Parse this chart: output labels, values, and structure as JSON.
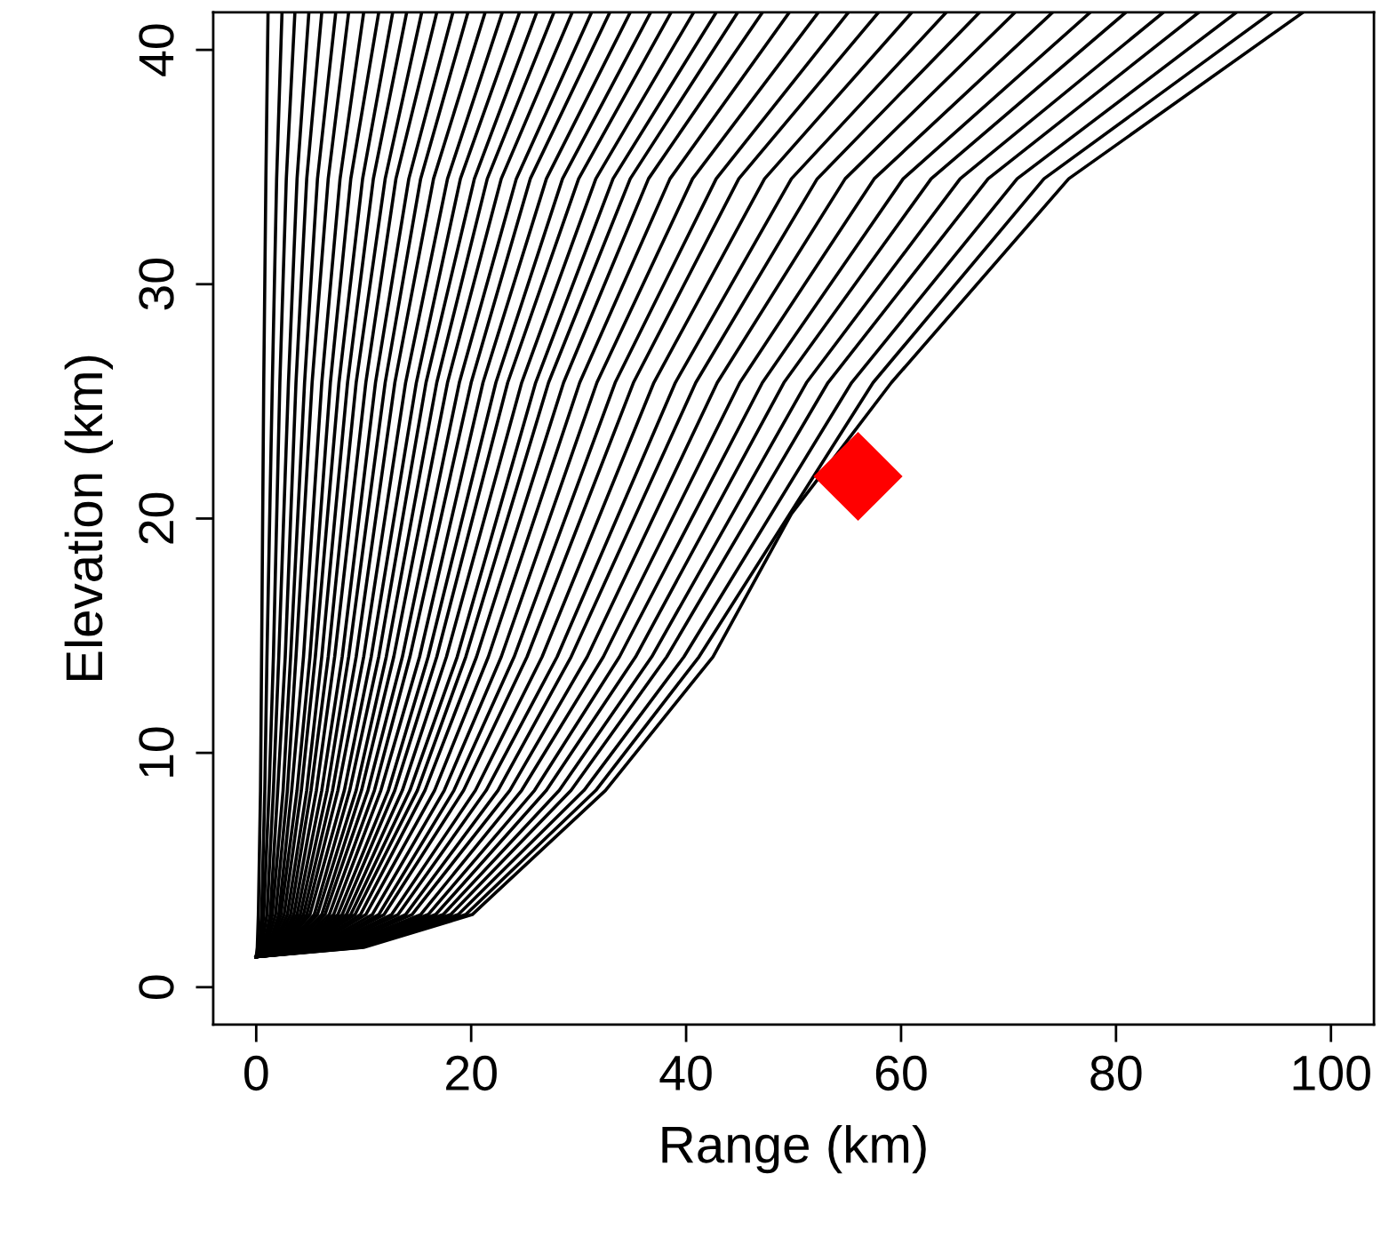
{
  "chart_data": {
    "type": "line",
    "xlabel": "Range (km)",
    "ylabel": "Elevation (km)",
    "xlim": [
      -4,
      104
    ],
    "ylim": [
      -1.6,
      41.6
    ],
    "xticks": [
      0,
      20,
      40,
      60,
      80,
      100
    ],
    "yticks": [
      0,
      10,
      20,
      30,
      40
    ],
    "grid": false,
    "legend": false,
    "line_style": "solid",
    "series": [
      {
        "color": "#000000",
        "x": [
          0,
          0.1,
          0.2,
          0.4,
          0.5,
          0.7,
          0.9,
          1.1
        ],
        "values": [
          1.3,
          1.7,
          3.1,
          8.4,
          14.1,
          25.8,
          34.5,
          41.6
        ]
      },
      {
        "color": "#000000",
        "x": [
          0,
          0.3,
          0.5,
          0.8,
          1.0,
          1.5,
          1.9,
          2.4
        ],
        "values": [
          1.3,
          1.7,
          3.1,
          8.4,
          14.1,
          25.8,
          34.5,
          41.6
        ]
      },
      {
        "color": "#000000",
        "x": [
          0,
          0.4,
          0.7,
          1.2,
          1.6,
          2.2,
          2.8,
          3.6
        ],
        "values": [
          1.3,
          1.7,
          3.1,
          8.4,
          14.1,
          25.8,
          34.5,
          41.6
        ]
      },
      {
        "color": "#000000",
        "x": [
          0,
          0.5,
          1.0,
          1.6,
          2.1,
          3.0,
          3.8,
          4.9
        ],
        "values": [
          1.3,
          1.7,
          3.1,
          8.4,
          14.1,
          25.8,
          34.5,
          41.6
        ]
      },
      {
        "color": "#000000",
        "x": [
          0,
          0.7,
          1.3,
          2.0,
          2.7,
          3.7,
          4.7,
          6.1
        ],
        "values": [
          1.3,
          1.7,
          3.1,
          8.4,
          14.1,
          25.8,
          34.5,
          41.6
        ]
      },
      {
        "color": "#000000",
        "x": [
          0,
          0.8,
          1.5,
          2.5,
          3.2,
          4.5,
          5.7,
          7.4
        ],
        "values": [
          1.3,
          1.7,
          3.1,
          8.4,
          14.1,
          25.8,
          34.5,
          41.6
        ]
      },
      {
        "color": "#000000",
        "x": [
          0,
          0.9,
          1.8,
          2.9,
          3.7,
          5.2,
          6.7,
          8.6
        ],
        "values": [
          1.3,
          1.7,
          3.1,
          8.4,
          14.1,
          25.8,
          34.5,
          41.6
        ]
      },
      {
        "color": "#000000",
        "x": [
          0,
          1.1,
          2.1,
          3.3,
          4.4,
          6.1,
          7.8,
          10.0
        ],
        "values": [
          1.3,
          1.7,
          3.1,
          8.4,
          14.1,
          25.8,
          34.5,
          41.6
        ]
      },
      {
        "color": "#000000",
        "x": [
          0,
          1.2,
          2.3,
          3.8,
          5.0,
          6.9,
          8.8,
          11.4
        ],
        "values": [
          1.3,
          1.7,
          3.1,
          8.4,
          14.1,
          25.8,
          34.5,
          41.6
        ]
      },
      {
        "color": "#000000",
        "x": [
          0,
          1.3,
          2.6,
          4.2,
          5.5,
          7.7,
          9.9,
          12.7
        ],
        "values": [
          1.3,
          1.7,
          3.1,
          8.4,
          14.1,
          25.8,
          34.5,
          41.6
        ]
      },
      {
        "color": "#000000",
        "x": [
          0,
          1.5,
          2.9,
          4.7,
          6.1,
          8.5,
          10.9,
          14.0
        ],
        "values": [
          1.3,
          1.7,
          3.1,
          8.4,
          14.1,
          25.8,
          34.5,
          41.6
        ]
      },
      {
        "color": "#000000",
        "x": [
          0,
          1.6,
          3.2,
          5.1,
          6.7,
          9.3,
          12.0,
          15.4
        ],
        "values": [
          1.3,
          1.7,
          3.1,
          8.4,
          14.1,
          25.8,
          34.5,
          41.6
        ]
      },
      {
        "color": "#000000",
        "x": [
          0,
          1.8,
          3.5,
          5.6,
          7.3,
          10.2,
          13.0,
          16.8
        ],
        "values": [
          1.3,
          1.7,
          3.1,
          8.4,
          14.1,
          25.8,
          34.5,
          41.6
        ]
      },
      {
        "color": "#000000",
        "x": [
          0,
          1.9,
          3.8,
          6.1,
          8.0,
          11.1,
          14.2,
          18.3
        ],
        "values": [
          1.3,
          1.7,
          3.1,
          8.4,
          14.1,
          25.8,
          34.5,
          41.6
        ]
      },
      {
        "color": "#000000",
        "x": [
          0,
          2.1,
          4.1,
          6.6,
          8.6,
          12.0,
          15.3,
          19.7
        ],
        "values": [
          1.3,
          1.7,
          3.1,
          8.4,
          14.1,
          25.8,
          34.5,
          41.6
        ]
      },
      {
        "color": "#000000",
        "x": [
          0,
          2.2,
          4.4,
          7.1,
          9.3,
          12.9,
          16.5,
          21.3
        ],
        "values": [
          1.3,
          1.7,
          3.1,
          8.4,
          14.1,
          25.8,
          34.5,
          41.6
        ]
      },
      {
        "color": "#000000",
        "x": [
          0,
          2.4,
          4.7,
          7.6,
          10.0,
          13.9,
          17.8,
          22.9
        ],
        "values": [
          1.3,
          1.7,
          3.1,
          8.4,
          14.1,
          25.8,
          34.5,
          41.6
        ]
      },
      {
        "color": "#000000",
        "x": [
          0,
          2.5,
          5.0,
          8.2,
          10.7,
          14.9,
          19.0,
          24.5
        ],
        "values": [
          1.3,
          1.7,
          3.1,
          8.4,
          14.1,
          25.8,
          34.5,
          41.6
        ]
      },
      {
        "color": "#000000",
        "x": [
          0,
          2.7,
          5.4,
          8.7,
          11.4,
          15.8,
          20.3,
          26.1
        ],
        "values": [
          1.3,
          1.7,
          3.1,
          8.4,
          14.1,
          25.8,
          34.5,
          41.6
        ]
      },
      {
        "color": "#000000",
        "x": [
          0,
          2.9,
          5.7,
          9.3,
          12.1,
          16.8,
          21.5,
          27.7
        ],
        "values": [
          1.3,
          1.7,
          3.1,
          8.4,
          14.1,
          25.8,
          34.5,
          41.6
        ]
      },
      {
        "color": "#000000",
        "x": [
          0,
          3.1,
          6.1,
          9.8,
          12.8,
          17.8,
          22.8,
          29.4
        ],
        "values": [
          1.3,
          1.7,
          3.1,
          8.4,
          14.1,
          25.8,
          34.5,
          41.6
        ]
      },
      {
        "color": "#000000",
        "x": [
          0,
          3.2,
          6.4,
          10.4,
          13.6,
          18.9,
          24.2,
          31.2
        ],
        "values": [
          1.3,
          1.7,
          3.1,
          8.4,
          14.1,
          25.8,
          34.5,
          41.6
        ]
      },
      {
        "color": "#000000",
        "x": [
          0,
          3.4,
          6.8,
          11.0,
          14.3,
          20.0,
          25.5,
          32.9
        ],
        "values": [
          1.3,
          1.7,
          3.1,
          8.4,
          14.1,
          25.8,
          34.5,
          41.6
        ]
      },
      {
        "color": "#000000",
        "x": [
          0,
          3.6,
          7.2,
          11.6,
          15.2,
          21.1,
          27.0,
          34.8
        ],
        "values": [
          1.3,
          1.7,
          3.1,
          8.4,
          14.1,
          25.8,
          34.5,
          41.6
        ]
      },
      {
        "color": "#000000",
        "x": [
          0,
          3.8,
          7.6,
          12.3,
          16.0,
          22.3,
          28.5,
          36.7
        ],
        "values": [
          1.3,
          1.7,
          3.1,
          8.4,
          14.1,
          25.8,
          34.5,
          41.6
        ]
      },
      {
        "color": "#000000",
        "x": [
          0,
          4.0,
          8.0,
          12.9,
          16.8,
          23.4,
          30.0,
          38.6
        ],
        "values": [
          1.3,
          1.7,
          3.1,
          8.4,
          14.1,
          25.8,
          34.5,
          41.6
        ]
      },
      {
        "color": "#000000",
        "x": [
          0,
          4.2,
          8.4,
          13.6,
          17.7,
          24.7,
          31.6,
          40.7
        ],
        "values": [
          1.3,
          1.7,
          3.1,
          8.4,
          14.1,
          25.8,
          34.5,
          41.6
        ]
      },
      {
        "color": "#000000",
        "x": [
          0,
          4.4,
          8.8,
          14.3,
          18.7,
          26.0,
          33.2,
          42.8
        ],
        "values": [
          1.3,
          1.7,
          3.1,
          8.4,
          14.1,
          25.8,
          34.5,
          41.6
        ]
      },
      {
        "color": "#000000",
        "x": [
          0,
          4.6,
          9.2,
          15.0,
          19.5,
          27.2,
          34.8,
          44.8
        ],
        "values": [
          1.3,
          1.7,
          3.1,
          8.4,
          14.1,
          25.8,
          34.5,
          41.6
        ]
      },
      {
        "color": "#000000",
        "x": [
          0,
          4.9,
          9.7,
          15.7,
          20.5,
          28.6,
          36.5,
          47.1
        ],
        "values": [
          1.3,
          1.7,
          3.1,
          8.4,
          14.1,
          25.8,
          34.5,
          41.6
        ]
      },
      {
        "color": "#000000",
        "x": [
          0,
          5.1,
          10.2,
          16.6,
          21.6,
          30.1,
          38.5,
          49.6
        ],
        "values": [
          1.3,
          1.7,
          3.1,
          8.4,
          14.1,
          25.8,
          34.5,
          41.6
        ]
      },
      {
        "color": "#000000",
        "x": [
          0,
          5.4,
          10.8,
          17.5,
          22.8,
          31.7,
          40.6,
          52.3
        ],
        "values": [
          1.3,
          1.7,
          3.1,
          8.4,
          14.1,
          25.8,
          34.5,
          41.6
        ]
      },
      {
        "color": "#000000",
        "x": [
          0,
          5.7,
          11.4,
          18.4,
          24.0,
          33.4,
          42.8,
          55.1
        ],
        "values": [
          1.3,
          1.7,
          3.1,
          8.4,
          14.1,
          25.8,
          34.5,
          41.6
        ]
      },
      {
        "color": "#000000",
        "x": [
          0,
          6.0,
          11.9,
          19.3,
          25.2,
          35.1,
          44.9,
          57.9
        ],
        "values": [
          1.3,
          1.7,
          3.1,
          8.4,
          14.1,
          25.8,
          34.5,
          41.6
        ]
      },
      {
        "color": "#000000",
        "x": [
          0,
          6.3,
          12.6,
          20.4,
          26.6,
          37.0,
          47.3,
          61.0
        ],
        "values": [
          1.3,
          1.7,
          3.1,
          8.4,
          14.1,
          25.8,
          34.5,
          41.6
        ]
      },
      {
        "color": "#000000",
        "x": [
          0,
          6.6,
          13.2,
          21.4,
          28.0,
          39.0,
          49.8,
          64.2
        ],
        "values": [
          1.3,
          1.7,
          3.1,
          8.4,
          14.1,
          25.8,
          34.5,
          41.6
        ]
      },
      {
        "color": "#000000",
        "x": [
          0,
          7.0,
          13.9,
          22.5,
          29.3,
          40.9,
          52.2,
          67.3
        ],
        "values": [
          1.3,
          1.7,
          3.1,
          8.4,
          14.1,
          25.8,
          34.5,
          41.6
        ]
      },
      {
        "color": "#000000",
        "x": [
          0,
          7.3,
          14.5,
          23.6,
          30.8,
          42.9,
          54.8,
          70.6
        ],
        "values": [
          1.3,
          1.7,
          3.1,
          8.4,
          14.1,
          25.8,
          34.5,
          41.6
        ]
      },
      {
        "color": "#000000",
        "x": [
          0,
          7.7,
          15.3,
          24.7,
          32.3,
          45.0,
          57.5,
          74.1
        ],
        "values": [
          1.3,
          1.7,
          3.1,
          8.4,
          14.1,
          25.8,
          34.5,
          41.6
        ]
      },
      {
        "color": "#000000",
        "x": [
          0,
          8.0,
          16.0,
          25.9,
          33.8,
          47.1,
          60.2,
          77.6
        ],
        "values": [
          1.3,
          1.7,
          3.1,
          8.4,
          14.1,
          25.8,
          34.5,
          41.6
        ]
      },
      {
        "color": "#000000",
        "x": [
          0,
          8.4,
          16.7,
          27.0,
          35.3,
          49.1,
          62.8,
          80.9
        ],
        "values": [
          1.3,
          1.7,
          3.1,
          8.4,
          14.1,
          25.8,
          34.5,
          41.6
        ]
      },
      {
        "color": "#000000",
        "x": [
          0,
          8.7,
          17.4,
          28.2,
          36.8,
          51.2,
          65.5,
          84.4
        ],
        "values": [
          1.3,
          1.7,
          3.1,
          8.4,
          14.1,
          25.8,
          34.5,
          41.6
        ]
      },
      {
        "color": "#000000",
        "x": [
          0,
          9.1,
          18.1,
          29.3,
          38.2,
          53.2,
          68.1,
          87.7
        ],
        "values": [
          1.3,
          1.7,
          3.1,
          8.4,
          14.1,
          25.8,
          34.5,
          41.6
        ]
      },
      {
        "color": "#000000",
        "x": [
          0,
          9.4,
          18.8,
          30.5,
          39.8,
          55.4,
          70.8,
          91.2
        ],
        "values": [
          1.3,
          1.7,
          3.1,
          8.4,
          14.1,
          25.8,
          34.5,
          41.6
        ]
      },
      {
        "color": "#000000",
        "x": [
          0,
          9.8,
          19.5,
          31.6,
          41.2,
          57.4,
          73.3,
          94.5
        ],
        "values": [
          1.3,
          1.7,
          3.1,
          8.4,
          14.1,
          25.8,
          34.5,
          41.6
        ]
      },
      {
        "color": "#000000",
        "x": [
          0,
          10.0,
          20.1,
          32.5,
          42.5,
          49.8,
          59.1,
          75.6,
          97.4
        ],
        "values": [
          1.3,
          1.7,
          3.1,
          8.4,
          14.1,
          20.2,
          25.8,
          34.5,
          41.6
        ]
      },
      {
        "type": "scatter",
        "marker": "diamond",
        "color": "#ff0000",
        "x": [
          56.0
        ],
        "values": [
          21.8
        ]
      }
    ]
  }
}
